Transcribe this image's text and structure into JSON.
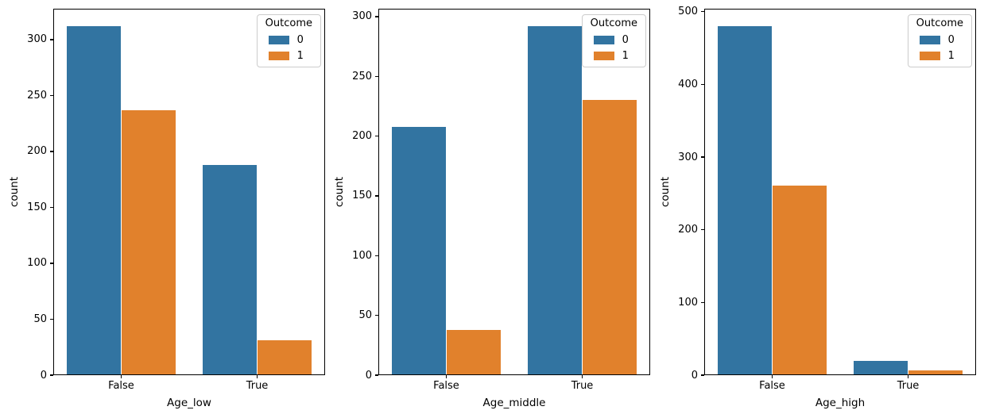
{
  "figure": {
    "background": "#ffffff"
  },
  "colors": {
    "series_0": "#3274a1",
    "series_1": "#e1812c",
    "axis_line": "#000000",
    "text": "#000000",
    "legend_border": "#cccccc",
    "legend_background": "rgba(255,255,255,0.8)"
  },
  "legend": {
    "title": "Outcome",
    "entries": [
      {
        "label": "0",
        "color": "#3274a1"
      },
      {
        "label": "1",
        "color": "#e1812c"
      }
    ]
  },
  "chart_data": [
    {
      "type": "bar",
      "title": "",
      "xlabel": "Age_low",
      "ylabel": "count",
      "categories": [
        "False",
        "True"
      ],
      "series": [
        {
          "name": "0",
          "values": [
            312,
            188
          ]
        },
        {
          "name": "1",
          "values": [
            237,
            31
          ]
        }
      ],
      "yticks": [
        0,
        50,
        100,
        150,
        200,
        250,
        300
      ],
      "ylim": [
        0,
        327.6
      ],
      "grid": false,
      "legend_position": "upper right"
    },
    {
      "type": "bar",
      "title": "",
      "xlabel": "Age_middle",
      "ylabel": "count",
      "categories": [
        "False",
        "True"
      ],
      "series": [
        {
          "name": "0",
          "values": [
            208,
            292
          ]
        },
        {
          "name": "1",
          "values": [
            38,
            230
          ]
        }
      ],
      "yticks": [
        0,
        50,
        100,
        150,
        200,
        250,
        300
      ],
      "ylim": [
        0,
        306.6
      ],
      "grid": false,
      "legend_position": "upper right"
    },
    {
      "type": "bar",
      "title": "",
      "xlabel": "Age_high",
      "ylabel": "count",
      "categories": [
        "False",
        "True"
      ],
      "series": [
        {
          "name": "0",
          "values": [
            480,
            20
          ]
        },
        {
          "name": "1",
          "values": [
            261,
            7
          ]
        }
      ],
      "yticks": [
        0,
        100,
        200,
        300,
        400,
        500
      ],
      "ylim": [
        0,
        504
      ],
      "grid": false,
      "legend_position": "upper right"
    }
  ]
}
